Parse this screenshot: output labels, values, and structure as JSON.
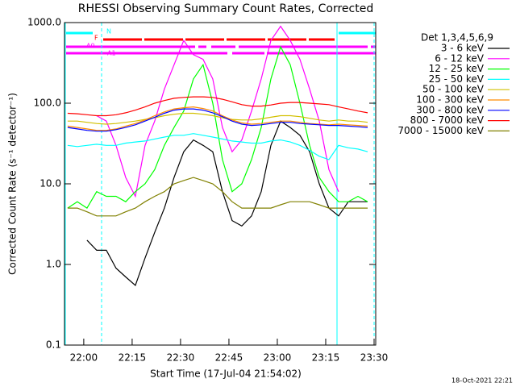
{
  "chart_data": {
    "type": "line",
    "title": "RHESSI Observing Summary Count Rates, Corrected",
    "x_label": "Start Time (17-Jul-04 21:54:02)",
    "y_label": "Corrected Count Rate (s⁻¹ detector⁻¹)",
    "legend_title": "Det 1,3,4,5,6,9",
    "legend_position": "right",
    "footer": "18-Oct-2021 22:21",
    "flag_labels": [
      "N",
      "F",
      "A0",
      "A1"
    ],
    "ylog": true,
    "xlim": [
      1314.03,
      1410.5
    ],
    "ylim": [
      0.1,
      1000
    ],
    "xticks": [
      {
        "value": 1320,
        "label": "22:00"
      },
      {
        "value": 1335,
        "label": "22:15"
      },
      {
        "value": 1350,
        "label": "22:30"
      },
      {
        "value": 1365,
        "label": "22:45"
      },
      {
        "value": 1380,
        "label": "23:00"
      },
      {
        "value": 1395,
        "label": "23:15"
      },
      {
        "value": 1410,
        "label": "23:30"
      }
    ],
    "yticks": [
      0.1,
      {
        "value": 1,
        "label": "1.0"
      },
      {
        "value": 10,
        "label": "10.0"
      },
      {
        "value": 100,
        "label": "100.0"
      },
      {
        "value": 1000,
        "label": "1000.0"
      }
    ],
    "x": [
      1315,
      1318,
      1321,
      1324,
      1327,
      1330,
      1333,
      1336,
      1339,
      1342,
      1345,
      1348,
      1351,
      1354,
      1357,
      1360,
      1363,
      1366,
      1369,
      1372,
      1375,
      1378,
      1381,
      1384,
      1387,
      1390,
      1393,
      1396,
      1399,
      1402,
      1405,
      1408
    ],
    "series": [
      {
        "name": "3 - 6 keV",
        "color": "#000000",
        "values": [
          null,
          null,
          2,
          1.5,
          1.5,
          0.9,
          0.7,
          0.55,
          1.2,
          2.5,
          5,
          12,
          25,
          35,
          30,
          25,
          8,
          3.5,
          3,
          4,
          8,
          30,
          60,
          50,
          40,
          25,
          10,
          5,
          4,
          6,
          6,
          6
        ]
      },
      {
        "name": "6 - 12 keV",
        "color": "#ff00ff",
        "values": [
          null,
          null,
          null,
          70,
          60,
          30,
          12,
          7,
          30,
          60,
          150,
          300,
          600,
          400,
          350,
          200,
          50,
          25,
          35,
          80,
          200,
          600,
          900,
          600,
          350,
          150,
          60,
          15,
          8,
          null,
          null,
          null
        ]
      },
      {
        "name": "12 - 25 keV",
        "color": "#00ff00",
        "values": [
          5,
          6,
          5,
          8,
          7,
          7,
          6,
          8,
          10,
          15,
          30,
          50,
          80,
          200,
          300,
          100,
          20,
          8,
          10,
          20,
          50,
          200,
          500,
          300,
          100,
          30,
          12,
          8,
          6,
          6,
          7,
          6
        ]
      },
      {
        "name": "25 - 50 keV",
        "color": "#00ffff",
        "values": [
          30,
          29,
          30,
          31,
          30,
          30,
          32,
          33,
          34,
          36,
          38,
          40,
          40,
          42,
          40,
          38,
          36,
          34,
          33,
          32,
          32,
          34,
          35,
          33,
          30,
          26,
          22,
          20,
          30,
          28,
          27,
          25
        ]
      },
      {
        "name": "50 - 100 keV",
        "color": "#d2c000",
        "values": [
          60,
          60,
          58,
          56,
          55,
          56,
          58,
          60,
          63,
          66,
          70,
          73,
          75,
          75,
          73,
          70,
          66,
          63,
          62,
          62,
          64,
          67,
          70,
          70,
          68,
          65,
          62,
          60,
          62,
          60,
          60,
          58
        ]
      },
      {
        "name": "100 - 300 keV",
        "color": "#ff8c00",
        "values": [
          52,
          50,
          48,
          46,
          46,
          48,
          52,
          56,
          62,
          70,
          78,
          85,
          88,
          90,
          86,
          80,
          70,
          62,
          57,
          55,
          56,
          58,
          60,
          60,
          58,
          56,
          55,
          54,
          55,
          54,
          53,
          52
        ]
      },
      {
        "name": "300 - 800 keV",
        "color": "#0000ff",
        "values": [
          50,
          48,
          46,
          45,
          45,
          47,
          50,
          54,
          60,
          67,
          75,
          82,
          85,
          85,
          82,
          76,
          68,
          60,
          55,
          53,
          54,
          56,
          58,
          58,
          56,
          55,
          54,
          53,
          53,
          52,
          51,
          50
        ]
      },
      {
        "name": "800 - 7000 keV",
        "color": "#ff0000",
        "values": [
          75,
          74,
          72,
          70,
          70,
          72,
          76,
          82,
          90,
          100,
          108,
          115,
          118,
          120,
          120,
          118,
          112,
          104,
          96,
          92,
          92,
          95,
          100,
          102,
          102,
          100,
          98,
          96,
          90,
          85,
          80,
          76
        ]
      },
      {
        "name": "7000 - 15000 keV",
        "color": "#808000",
        "values": [
          5,
          5,
          4.5,
          4,
          4,
          4,
          4.5,
          5,
          6,
          7,
          8,
          10,
          11,
          12,
          11,
          10,
          8,
          6,
          5,
          5,
          5,
          5,
          5.5,
          6,
          6,
          6,
          5.5,
          5,
          5,
          5,
          5,
          5
        ]
      }
    ]
  }
}
